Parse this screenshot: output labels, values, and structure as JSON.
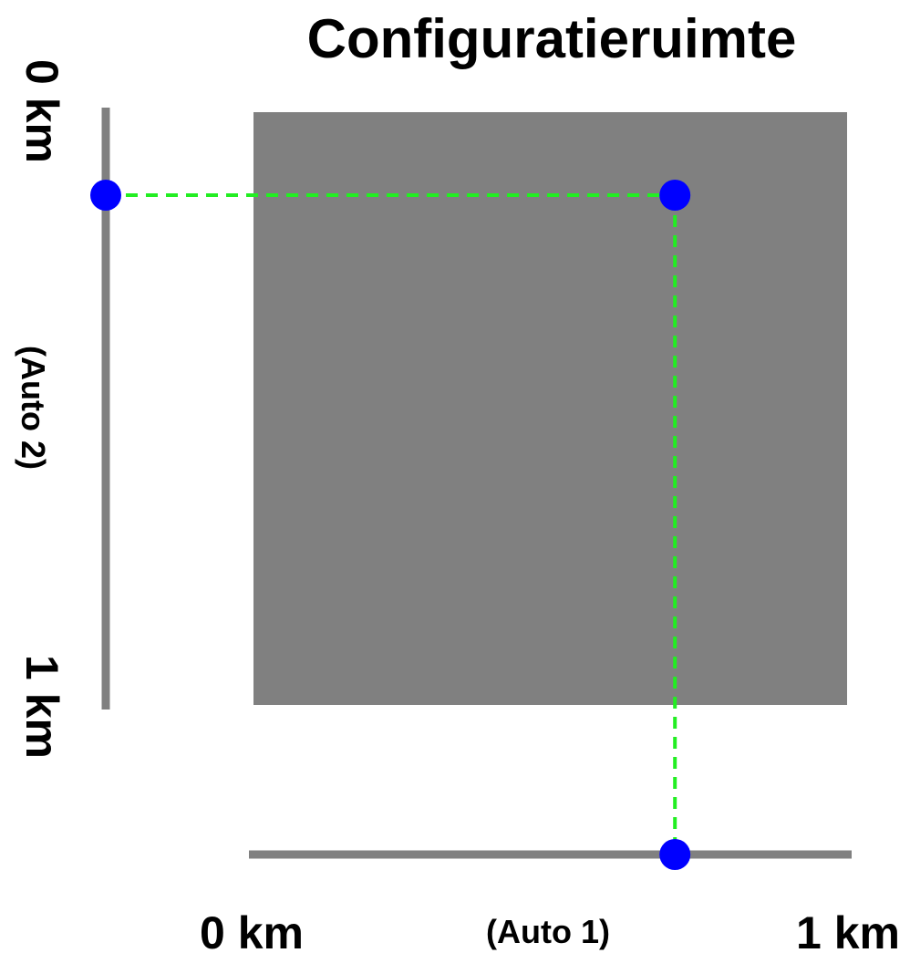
{
  "title": "Configuratieruimte",
  "colors": {
    "background": "#ffffff",
    "config_space": "#808080",
    "axis_line": "#808080",
    "point": "#0000ff",
    "projection_line": "#22ee22",
    "text": "#000000"
  },
  "axis_x": {
    "start_label": "0 km",
    "end_label": "1 km",
    "name": "(Auto 1)"
  },
  "axis_y": {
    "start_label": "0 km",
    "end_label": "1 km",
    "name": "(Auto 2)"
  },
  "configuration": {
    "auto1_km": 0.71,
    "auto2_km": 0.14
  }
}
